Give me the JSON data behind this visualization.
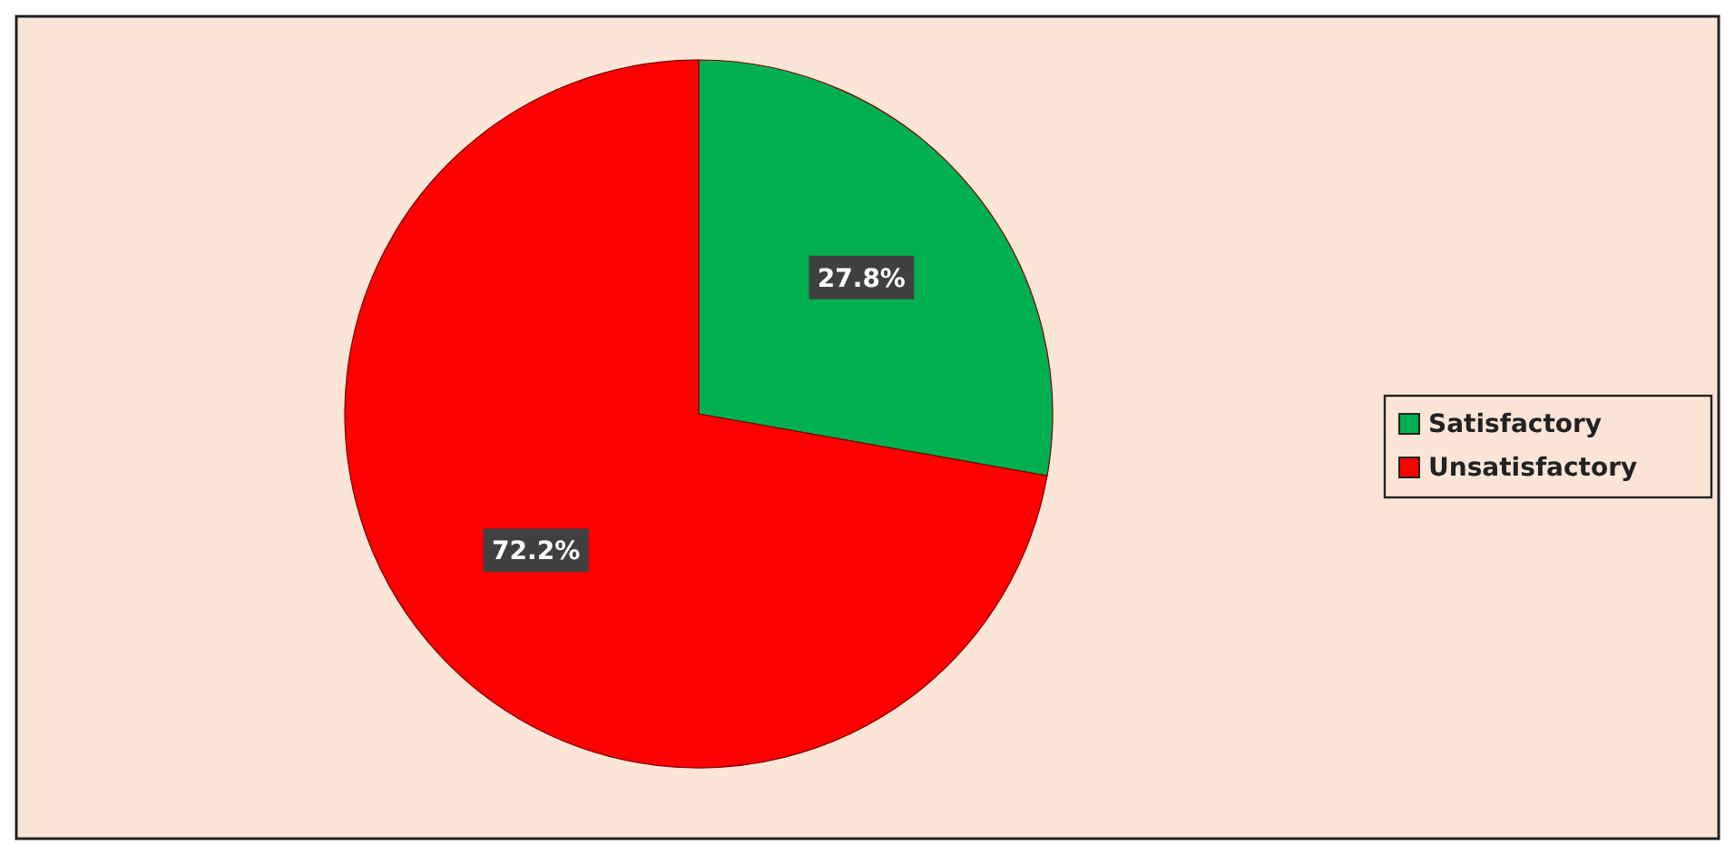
{
  "chart_data": {
    "type": "pie",
    "categories": [
      "Satisfactory",
      "Unsatisfactory"
    ],
    "values": [
      27.8,
      72.2
    ],
    "colors": [
      "#00b050",
      "#ff0000"
    ],
    "value_labels": [
      "27.8%",
      "72.2%"
    ],
    "legend": "right"
  }
}
